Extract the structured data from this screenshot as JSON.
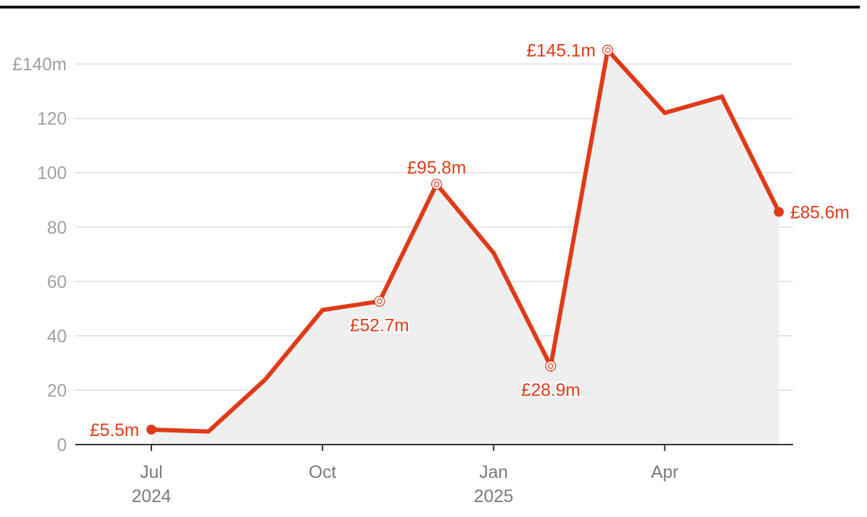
{
  "chart_data": {
    "type": "area",
    "title": "",
    "xlabel": "",
    "ylabel": "",
    "x": [
      "2024-07",
      "2024-08",
      "2024-09",
      "2024-10",
      "2024-11",
      "2024-12",
      "2025-01",
      "2025-02",
      "2025-03",
      "2025-04",
      "2025-05",
      "2025-06"
    ],
    "series": [
      {
        "values": [
          5.5,
          4.8,
          24,
          49.5,
          52.7,
          95.8,
          70.5,
          28.9,
          145.1,
          122,
          128,
          85.6
        ]
      }
    ],
    "ylim": [
      0,
      145
    ],
    "y_ticks": [
      0,
      20,
      40,
      60,
      80,
      100,
      120,
      140
    ],
    "y_tick_labels": [
      "0",
      "20",
      "40",
      "60",
      "80",
      "100",
      "120",
      "£140m"
    ],
    "x_ticks": [
      {
        "x": "2024-07",
        "line1": "Jul",
        "line2": "2024"
      },
      {
        "x": "2024-10",
        "line1": "Oct",
        "line2": ""
      },
      {
        "x": "2025-01",
        "line1": "Jan",
        "line2": "2025"
      },
      {
        "x": "2025-04",
        "line1": "Apr",
        "line2": ""
      }
    ],
    "annotations": [
      {
        "index": 0,
        "text": "£5.5m",
        "marker": "filled"
      },
      {
        "index": 4,
        "text": "£52.7m",
        "marker": "ring"
      },
      {
        "index": 5,
        "text": "£95.8m",
        "marker": "ring"
      },
      {
        "index": 7,
        "text": "£28.9m",
        "marker": "ring"
      },
      {
        "index": 8,
        "text": "£145.1m",
        "marker": "ring"
      },
      {
        "index": 11,
        "text": "£85.6m",
        "marker": "filled"
      }
    ],
    "grid": true,
    "legend": "none",
    "colors": {
      "line": "#e03a17",
      "area": "#efefef",
      "grid": "#dddddd",
      "axis": "#333333"
    }
  }
}
